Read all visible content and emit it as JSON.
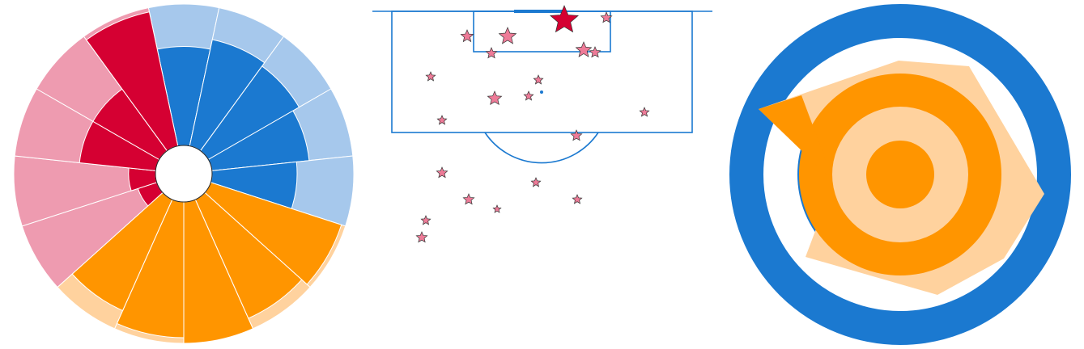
{
  "chart_data": [
    {
      "type": "pizza",
      "ylim": [
        0,
        100
      ],
      "series": [
        {
          "color": "#1b79d0",
          "background_color": "#a6c8ec",
          "values": [
            70,
            77,
            74,
            69,
            60
          ]
        },
        {
          "color": "#ff9500",
          "background_color": "#ffd29e",
          "values": [
            97,
            92,
            100,
            96,
            86
          ]
        },
        {
          "color": "#d50032",
          "background_color": "#ee9bb0",
          "values": [
            14,
            19,
            54,
            54,
            97
          ]
        }
      ]
    },
    {
      "type": "scatter",
      "xlim": [
        0,
        420
      ],
      "ylim": [
        300,
        0
      ],
      "x": [
        237,
        117,
        167,
        147,
        289,
        261,
        275,
        72,
        205,
        151,
        193,
        86,
        336,
        252,
        86,
        202,
        119,
        154,
        253,
        66,
        61
      ],
      "y": [
        11,
        31,
        31,
        52,
        8,
        48,
        51,
        81,
        85,
        108,
        105,
        135,
        125,
        154,
        200,
        212,
        233,
        245,
        233,
        259,
        280
      ],
      "sizes": [
        18,
        8,
        11,
        7,
        7,
        10,
        7,
        6,
        6,
        9,
        6,
        6,
        6,
        7,
        7,
        6,
        7,
        5,
        6,
        6,
        7
      ],
      "colors": [
        "#d50032",
        "#ee7b98",
        "#ee7b98",
        "#ee7b98",
        "#ee7b98",
        "#ee7b98",
        "#ee7b98",
        "#ee7b98",
        "#ee7b98",
        "#ee7b98",
        "#ee7b98",
        "#ee7b98",
        "#ee7b98",
        "#ee7b98",
        "#ee7b98",
        "#ee7b98",
        "#ee7b98",
        "#ee7b98",
        "#ee7b98",
        "#ee7b98",
        "#ee7b98"
      ]
    }
  ]
}
